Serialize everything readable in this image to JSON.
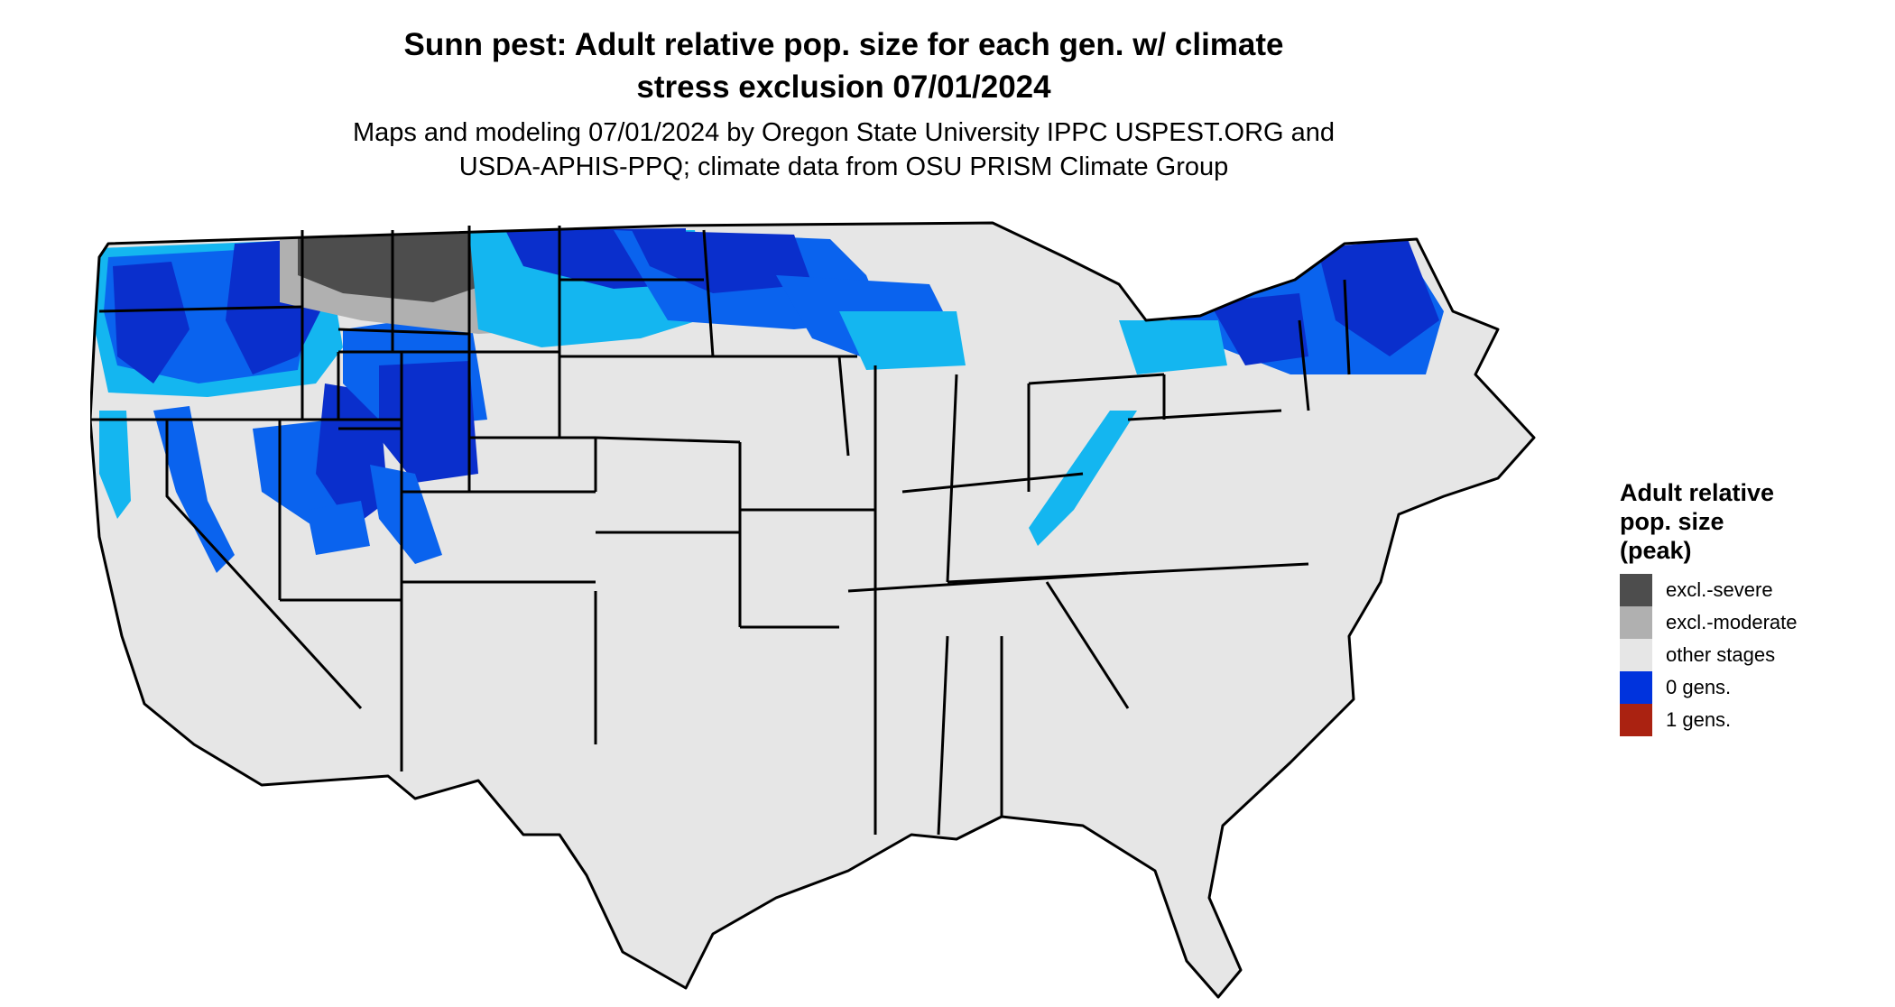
{
  "title_line1": "Sunn pest: Adult relative pop. size for each gen. w/ climate",
  "title_line2": "stress exclusion 07/01/2024",
  "subtitle_line1": "Maps and modeling 07/01/2024 by Oregon State University IPPC USPEST.ORG and",
  "subtitle_line2": "USDA-APHIS-PPQ; climate data from OSU PRISM Climate Group",
  "legend": {
    "title_line1": "Adult relative",
    "title_line2": "pop. size",
    "title_line3": "(peak)",
    "items": [
      {
        "label": "excl.-severe",
        "color": "#4d4d4d"
      },
      {
        "label": "excl.-moderate",
        "color": "#b0b0b0"
      },
      {
        "label": "other stages",
        "color": "#e6e6e6"
      },
      {
        "label": "0 gens.",
        "color": "#0033dd"
      },
      {
        "label": "1 gens.",
        "color": "#aa2211"
      }
    ]
  },
  "map_colors": {
    "land": "#e6e6e6",
    "boundary": "#000000",
    "excl_severe": "#4d4d4d",
    "excl_moderate": "#b0b0b0",
    "zero_gens_dark": "#0a2fcc",
    "zero_gens_mid": "#0a63ee",
    "zero_gens_light": "#14b6f0"
  }
}
